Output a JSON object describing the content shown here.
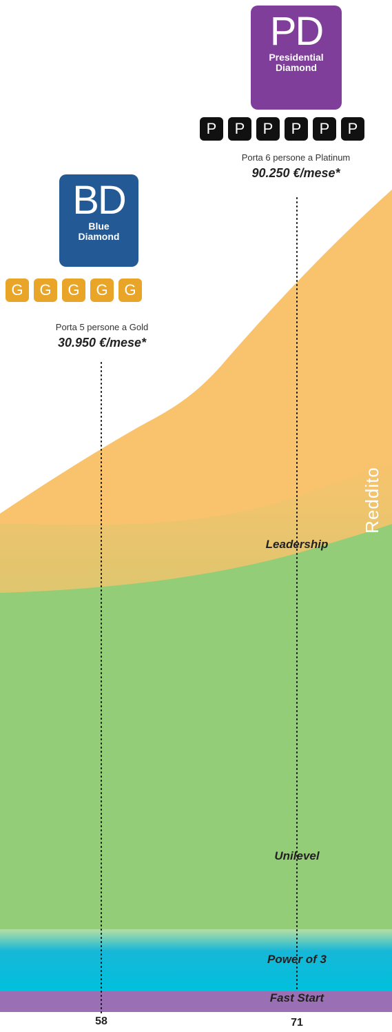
{
  "chart_data": {
    "type": "area",
    "ylabel": "Reddito",
    "x_ticks": [
      "58",
      "71"
    ],
    "layers": [
      {
        "name": "Fast Start",
        "color": "#9b6fb4"
      },
      {
        "name": "Power of 3",
        "color": "#17b7d8"
      },
      {
        "name": "Unilevel",
        "color": "#94cd78"
      },
      {
        "name": "Leadership",
        "color": "#f8c36c"
      }
    ],
    "milestones": [
      {
        "x": "58",
        "rank_abbr": "BD",
        "rank_name_line1": "Blue",
        "rank_name_line2": "Diamond",
        "rank_color": "#235a95",
        "tile_letter": "G",
        "tile_count": 5,
        "tile_color": "#e9a527",
        "caption": "Porta 5 persone a Gold",
        "amount": "30.950 €/mese*"
      },
      {
        "x": "71",
        "rank_abbr": "PD",
        "rank_name_line1": "Presidential",
        "rank_name_line2": "Diamond",
        "rank_color": "#7f3e9a",
        "tile_letter": "P",
        "tile_count": 6,
        "tile_color": "#111111",
        "caption": "Porta 6 persone a Platinum",
        "amount": "90.250 €/mese*"
      }
    ]
  }
}
